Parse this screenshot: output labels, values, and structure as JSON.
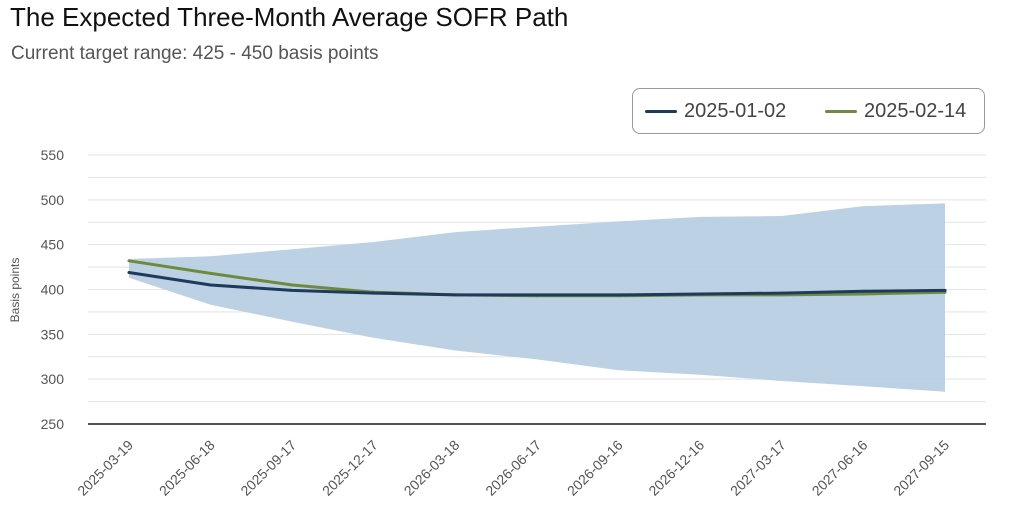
{
  "header": {
    "title": "The Expected Three-Month Average SOFR Path",
    "subtitle": "Current target range: 425 - 450 basis points"
  },
  "colors": {
    "series1": "#1f3b5c",
    "series2": "#6e8b3d",
    "band": "#b9cfe3",
    "grid": "#e3e3e3",
    "axis": "#555555"
  },
  "chart_data": {
    "type": "line",
    "title": "The Expected Three-Month Average SOFR Path",
    "subtitle": "Current target range: 425 - 450 basis points",
    "xlabel": "",
    "ylabel": "Basis points",
    "ylim": [
      250,
      550
    ],
    "yticks": [
      250,
      300,
      350,
      400,
      450,
      500,
      550
    ],
    "grid": true,
    "legend": "top-right",
    "x": [
      "2025-03-19",
      "2025-06-18",
      "2025-09-17",
      "2025-12-17",
      "2026-03-18",
      "2026-06-17",
      "2026-09-16",
      "2026-12-16",
      "2027-03-17",
      "2027-06-16",
      "2027-09-15"
    ],
    "series": [
      {
        "name": "2025-01-02",
        "values": [
          419,
          405,
          399,
          396,
          394,
          394,
          394,
          395,
          396,
          398,
          399
        ]
      },
      {
        "name": "2025-02-14",
        "values": [
          432,
          418,
          405,
          397,
          394,
          393,
          393,
          394,
          394,
          395,
          397
        ]
      }
    ],
    "band": {
      "upper": [
        434,
        437,
        445,
        453,
        464,
        470,
        476,
        481,
        482,
        493,
        496
      ],
      "lower": [
        413,
        383,
        364,
        346,
        332,
        322,
        310,
        305,
        298,
        292,
        286
      ]
    }
  }
}
